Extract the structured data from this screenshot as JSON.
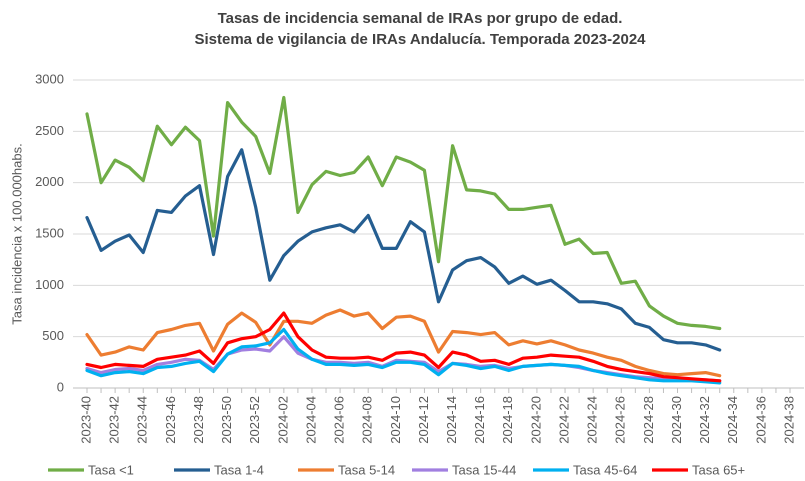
{
  "chart_data": {
    "type": "line",
    "title": "Tasas de incidencia semanal de IRAs por grupo de edad.",
    "subtitle": "Sistema de vigilancia de IRAs Andalucía. Temporada 2023-2024",
    "y_label": "Tasa incidencia x 100.000habs.",
    "categories": [
      "2023-40",
      null,
      "2023-42",
      null,
      "2023-44",
      null,
      "2023-46",
      null,
      "2023-48",
      null,
      "2023-50",
      null,
      "2023-52",
      null,
      "2024-02",
      null,
      "2024-04",
      null,
      "2024-06",
      null,
      "2024-08",
      null,
      "2024-10",
      null,
      "2024-12",
      null,
      "2024-14",
      null,
      "2024-16",
      null,
      "2024-18",
      null,
      "2024-20",
      null,
      "2024-22",
      null,
      "2024-24",
      null,
      "2024-26",
      null,
      "2024-28",
      null,
      "2024-30",
      null,
      "2024-32",
      null,
      "2024-34",
      null,
      "2024-36",
      null,
      "2024-38"
    ],
    "ylim": [
      0,
      3000
    ],
    "yticks": [
      0,
      500,
      1000,
      1500,
      2000,
      2500,
      3000
    ],
    "grid": true,
    "legend": "bottom",
    "series": [
      {
        "name": "Tasa <1",
        "color": "#70ad47",
        "values": [
          2670,
          2000,
          2220,
          2150,
          2020,
          2550,
          2370,
          2540,
          2410,
          1480,
          2780,
          2590,
          2450,
          2090,
          2830,
          1710,
          1980,
          2110,
          2070,
          2100,
          2250,
          1970,
          2250,
          2200,
          2120,
          1230,
          2360,
          1930,
          1920,
          1890,
          1740,
          1740,
          1760,
          1780,
          1400,
          1450,
          1310,
          1320,
          1020,
          1040,
          800,
          700,
          630,
          610,
          600,
          580,
          null,
          null,
          null,
          null,
          null
        ]
      },
      {
        "name": "Tasa 1-4",
        "color": "#255e91",
        "values": [
          1660,
          1340,
          1430,
          1490,
          1320,
          1730,
          1710,
          1870,
          1970,
          1300,
          2060,
          2320,
          1760,
          1050,
          1290,
          1430,
          1520,
          1560,
          1590,
          1520,
          1680,
          1360,
          1360,
          1620,
          1520,
          840,
          1150,
          1240,
          1270,
          1180,
          1020,
          1090,
          1010,
          1050,
          950,
          840,
          840,
          820,
          770,
          630,
          590,
          470,
          440,
          440,
          420,
          370,
          null,
          null,
          null,
          null,
          null
        ]
      },
      {
        "name": "Tasa 5-14",
        "color": "#ed7d31",
        "values": [
          520,
          320,
          350,
          400,
          370,
          540,
          570,
          610,
          630,
          360,
          620,
          730,
          640,
          420,
          650,
          650,
          630,
          710,
          760,
          700,
          730,
          580,
          690,
          700,
          650,
          350,
          550,
          540,
          520,
          540,
          420,
          460,
          430,
          460,
          420,
          370,
          340,
          300,
          270,
          210,
          170,
          140,
          130,
          140,
          150,
          120,
          null,
          null,
          null,
          null,
          null
        ]
      },
      {
        "name": "Tasa 15-44",
        "color": "#a17fe0",
        "values": [
          190,
          150,
          180,
          190,
          170,
          230,
          250,
          280,
          270,
          180,
          330,
          370,
          380,
          360,
          500,
          340,
          280,
          250,
          250,
          240,
          250,
          210,
          270,
          260,
          250,
          160,
          240,
          230,
          210,
          220,
          190,
          210,
          220,
          230,
          220,
          200,
          170,
          150,
          130,
          110,
          100,
          90,
          80,
          80,
          80,
          70,
          null,
          null,
          null,
          null,
          null
        ]
      },
      {
        "name": "Tasa 45-64",
        "color": "#00b0f0",
        "values": [
          170,
          120,
          150,
          160,
          140,
          200,
          210,
          240,
          260,
          160,
          330,
          400,
          410,
          440,
          570,
          380,
          280,
          230,
          230,
          220,
          230,
          200,
          250,
          250,
          230,
          130,
          240,
          220,
          190,
          210,
          170,
          210,
          220,
          230,
          220,
          210,
          170,
          140,
          120,
          100,
          80,
          70,
          70,
          70,
          60,
          50,
          null,
          null,
          null,
          null,
          null
        ]
      },
      {
        "name": "Tasa 65+",
        "color": "#ff0000",
        "values": [
          230,
          200,
          230,
          220,
          210,
          280,
          300,
          320,
          360,
          240,
          440,
          480,
          500,
          570,
          730,
          500,
          370,
          300,
          290,
          290,
          300,
          270,
          340,
          350,
          320,
          200,
          350,
          320,
          260,
          270,
          230,
          290,
          300,
          320,
          310,
          300,
          260,
          210,
          180,
          160,
          140,
          110,
          100,
          90,
          80,
          70,
          null,
          null,
          null,
          null,
          null
        ]
      }
    ]
  }
}
